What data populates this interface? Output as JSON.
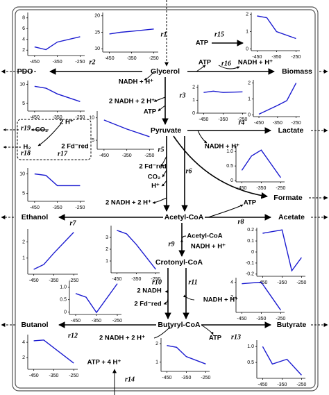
{
  "nodes": [
    "Glycerol",
    "Pyruvate",
    "Acetyl-CoA",
    "Crotonyl-CoA",
    "Butyryl-CoA",
    "PDO",
    "Biomass",
    "Lactate",
    "Formate",
    "Ethanol",
    "Acetate",
    "Butanol",
    "Butyrate"
  ],
  "cofactors": [
    "ATP",
    "NADH + H⁺",
    "ATP",
    "NADH + H⁺",
    "2 NADH + 2 H⁺",
    "ATP",
    "CO₂",
    "2 H⁺",
    "H₂",
    "2 Fd⁻red",
    "NADH + H⁺",
    "2 Fd⁻red",
    "CO₂",
    "H⁺",
    "2 NADH + 2 H⁺",
    "ATP",
    "Acetyl-CoA",
    "NADH + H⁺",
    "2 NADH",
    "2 Fd⁻red",
    "NADH + H⁺",
    "2 NADH + 2 H⁺",
    "ATP",
    "ATP + 4 H⁺"
  ],
  "reactions": [
    "r1",
    "r2",
    "r15",
    "r16",
    "r3",
    "r4",
    "r19",
    "r18",
    "r17",
    "r5",
    "r6",
    "r7",
    "r8",
    "r9",
    "r10",
    "r11",
    "r12",
    "r13",
    "r14"
  ],
  "line_color": "#1a1ad0",
  "charts": [
    {
      "x": [
        -450,
        -400,
        -350,
        -250
      ],
      "values": [
        14.5,
        15,
        15.3,
        16
      ],
      "xlim": [
        -480,
        -230
      ],
      "xticks": [
        -450,
        -350,
        -250
      ],
      "ylim": [
        9,
        21
      ],
      "yticks": [
        10,
        15,
        20
      ]
    },
    {
      "x": [
        -450,
        -400,
        -350,
        -250
      ],
      "values": [
        2.6,
        2.1,
        3.5,
        4.5
      ],
      "xlim": [
        -480,
        -230
      ],
      "xticks": [
        -450,
        -350,
        -250
      ],
      "ylim": [
        1,
        9
      ],
      "yticks": [
        2,
        4,
        6,
        8
      ]
    },
    {
      "x": [
        -450,
        -400,
        -350,
        -250
      ],
      "values": [
        1.9,
        1.8,
        1.0,
        0.6
      ],
      "xlim": [
        -480,
        -230
      ],
      "xticks": [
        -450,
        -350,
        -250
      ],
      "ylim": [
        -0.1,
        2.1
      ],
      "yticks": [
        0,
        1,
        2
      ]
    },
    {
      "x": [
        -450,
        -400,
        -350,
        -250
      ],
      "values": [
        9.5,
        9,
        7.5,
        5.5
      ],
      "xlim": [
        -480,
        -230
      ],
      "xticks": [
        -450,
        -350,
        -250
      ],
      "ylim": [
        3,
        11
      ],
      "yticks": [
        5,
        10
      ]
    },
    {
      "x": [
        -450,
        -400,
        -350,
        -250
      ],
      "values": [
        1.6,
        1.7,
        1.6,
        1.65
      ],
      "xlim": [
        -480,
        -230
      ],
      "xticks": [
        -450,
        -350,
        -250
      ],
      "ylim": [
        0,
        2.2
      ],
      "yticks": [
        0,
        1,
        2
      ]
    },
    {
      "x": [
        -450,
        -350,
        -300,
        -250
      ],
      "values": [
        0.05,
        0.6,
        0.9,
        2.0
      ],
      "xlim": [
        -480,
        -230
      ],
      "xticks": [
        -450,
        -350,
        -250
      ],
      "ylim": [
        -0.1,
        2.2
      ],
      "yticks": [
        0,
        1,
        2
      ]
    },
    {
      "x": [
        -450,
        -350,
        -250
      ],
      "values": [
        9.5,
        7.5,
        5.8
      ],
      "xlim": [
        -480,
        -230
      ],
      "xticks": [
        -450,
        -350,
        -250
      ],
      "ylim": [
        3,
        11.5
      ],
      "yticks": [
        5,
        10
      ]
    },
    {
      "x": [
        -450,
        -400,
        -350,
        -250
      ],
      "values": [
        10,
        9.6,
        7,
        7
      ],
      "xlim": [
        -480,
        -230
      ],
      "xticks": [
        -450,
        -350,
        -250
      ],
      "ylim": [
        3,
        11.5
      ],
      "yticks": [
        5,
        10
      ]
    },
    {
      "x": [
        -450,
        -400,
        -350,
        -250
      ],
      "values": [
        0.35,
        0.85,
        1.05,
        0.1
      ],
      "xlim": [
        -480,
        -230
      ],
      "xticks": [
        -450,
        -350,
        -250
      ],
      "ylim": [
        -0.05,
        1.2
      ],
      "yticks": [
        0,
        0.5,
        {
          "value": 1,
          "label": "1.0"
        }
      ]
    },
    {
      "x": [
        -450,
        -400,
        -350,
        -250
      ],
      "values": [
        0.3,
        0.6,
        1.3,
        2.6
      ],
      "xlim": [
        -480,
        -230
      ],
      "xticks": [
        -450,
        -350,
        -250
      ],
      "ylim": [
        0,
        2.8
      ],
      "yticks": [
        1,
        2
      ]
    },
    {
      "x": [
        -450,
        -400,
        -350,
        -250
      ],
      "values": [
        3.6,
        3.3,
        2.4,
        0.3
      ],
      "xlim": [
        -480,
        -230
      ],
      "xticks": [
        -450,
        -350,
        -250
      ],
      "ylim": [
        0,
        4
      ],
      "yticks": [
        1,
        2,
        3
      ]
    },
    {
      "x": [
        -450,
        -350,
        -300,
        -250
      ],
      "values": [
        0.17,
        0.2,
        -0.17,
        -0.05
      ],
      "xlim": [
        -480,
        -230
      ],
      "xticks": [
        -450,
        -350,
        -250
      ],
      "ylim": [
        -0.22,
        0.22
      ],
      "yticks": [
        -0.2,
        -0.1,
        0,
        0.1,
        0.2
      ]
    },
    {
      "x": [
        -450,
        -400,
        -350,
        -250
      ],
      "values": [
        0.75,
        0.6,
        -0.02,
        1.15
      ],
      "xlim": [
        -480,
        -230
      ],
      "xticks": [
        -450,
        -350,
        -250
      ],
      "ylim": [
        -0.1,
        1.25
      ],
      "yticks": [
        0,
        0.5,
        {
          "value": 1,
          "label": "1.0"
        }
      ]
    },
    {
      "x": [
        -450,
        -400,
        -350,
        -250
      ],
      "values": [
        3.8,
        3.9,
        4.0,
        0.3
      ],
      "xlim": [
        -480,
        -230
      ],
      "xticks": [
        -450,
        -350,
        -250
      ],
      "ylim": [
        0,
        4.6
      ],
      "yticks": [
        2,
        4
      ]
    },
    {
      "x": [
        -450,
        -400,
        -350,
        -250
      ],
      "values": [
        4.2,
        4.3,
        3.3,
        1.3
      ],
      "xlim": [
        -480,
        -230
      ],
      "xticks": [
        -450,
        -350,
        -250
      ],
      "ylim": [
        0.5,
        5
      ],
      "yticks": [
        2,
        4
      ]
    },
    {
      "x": [
        -450,
        -400,
        -350,
        -250
      ],
      "values": [
        1.9,
        1.8,
        1.3,
        0.9
      ],
      "xlim": [
        -480,
        -230
      ],
      "xticks": [
        -450,
        -350,
        -250
      ],
      "ylim": [
        0.5,
        2.3
      ],
      "yticks": [
        1,
        2
      ]
    },
    {
      "x": [
        -450,
        -400,
        -325,
        -250
      ],
      "values": [
        1.0,
        0.45,
        0.6,
        0.1
      ],
      "xlim": [
        -480,
        -230
      ],
      "xticks": [
        -450,
        -350,
        -250
      ],
      "ylim": [
        0,
        1.2
      ],
      "yticks": [
        0.5,
        {
          "value": 1,
          "label": "1.0"
        }
      ]
    }
  ]
}
